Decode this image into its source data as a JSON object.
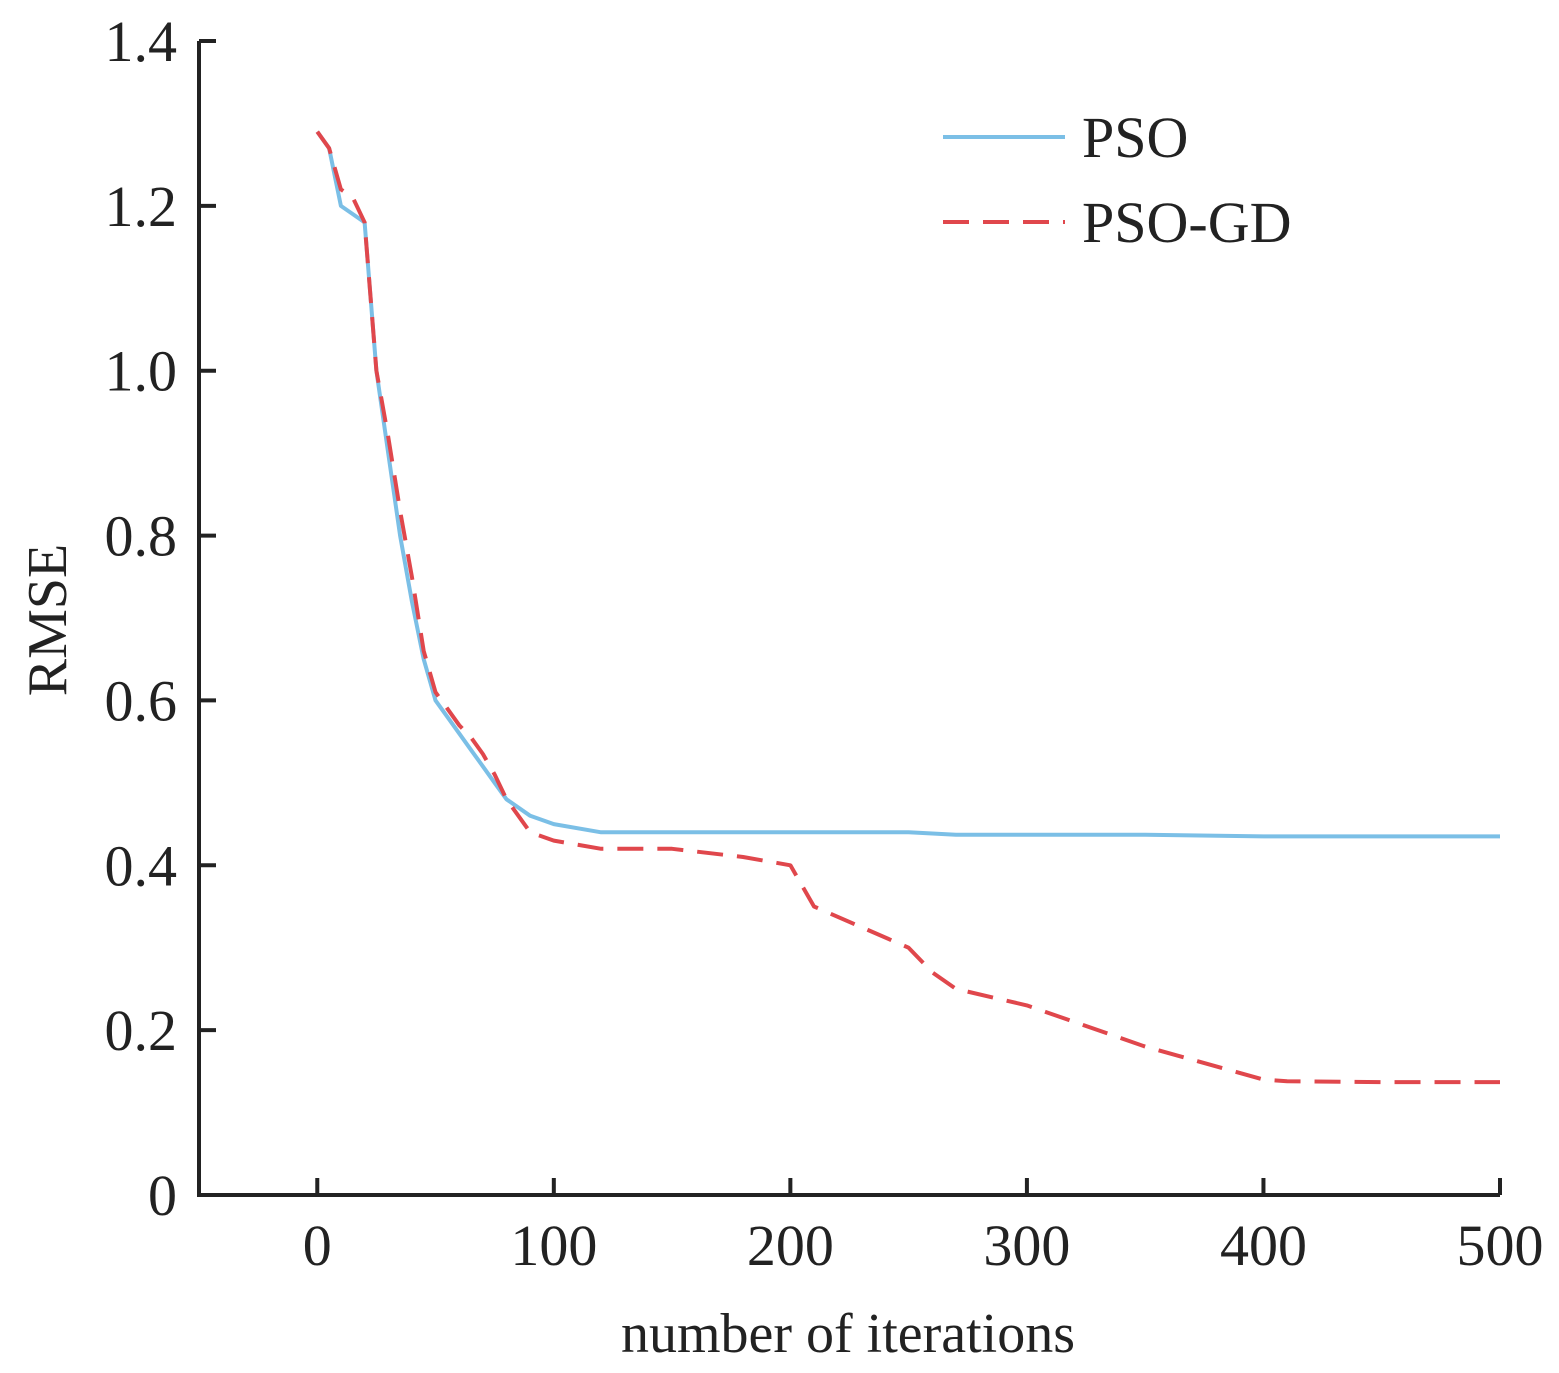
{
  "chart_data": {
    "type": "line",
    "title": "",
    "xlabel": "number of iterations",
    "ylabel": "RMSE",
    "xlim": [
      -50,
      500
    ],
    "ylim": [
      0,
      1.4
    ],
    "xticks": [
      0,
      100,
      200,
      300,
      400,
      500
    ],
    "xtick_labels": [
      "0",
      "100",
      "200",
      "300",
      "400",
      "500"
    ],
    "yticks": [
      0,
      0.2,
      0.4,
      0.6,
      0.8,
      1.0,
      1.2,
      1.4
    ],
    "ytick_labels": [
      "0",
      "0.2",
      "0.4",
      "0.6",
      "0.8",
      "1.0",
      "1.2",
      "1.4"
    ],
    "grid": false,
    "legend_position": "top-right",
    "series": [
      {
        "name": "PSO",
        "color": "#7bbfe6",
        "line_style": "solid",
        "x": [
          0,
          5,
          10,
          15,
          20,
          25,
          30,
          35,
          40,
          45,
          50,
          55,
          60,
          65,
          70,
          75,
          80,
          90,
          100,
          120,
          150,
          200,
          250,
          270,
          300,
          350,
          400,
          450,
          500
        ],
        "y": [
          1.29,
          1.27,
          1.2,
          1.19,
          1.18,
          1.0,
          0.9,
          0.8,
          0.72,
          0.65,
          0.6,
          0.58,
          0.56,
          0.54,
          0.52,
          0.5,
          0.48,
          0.46,
          0.45,
          0.44,
          0.44,
          0.44,
          0.44,
          0.437,
          0.437,
          0.437,
          0.435,
          0.435,
          0.435
        ]
      },
      {
        "name": "PSO-GD",
        "color": "#e0474c",
        "line_style": "dashed",
        "x": [
          0,
          5,
          10,
          15,
          20,
          25,
          30,
          35,
          40,
          45,
          50,
          55,
          60,
          65,
          70,
          75,
          80,
          90,
          100,
          120,
          150,
          180,
          200,
          210,
          250,
          260,
          270,
          300,
          350,
          400,
          410,
          450,
          500
        ],
        "y": [
          1.29,
          1.27,
          1.22,
          1.21,
          1.18,
          1.0,
          0.92,
          0.83,
          0.75,
          0.66,
          0.61,
          0.59,
          0.57,
          0.555,
          0.535,
          0.51,
          0.48,
          0.44,
          0.43,
          0.42,
          0.42,
          0.41,
          0.4,
          0.35,
          0.3,
          0.27,
          0.25,
          0.23,
          0.18,
          0.14,
          0.138,
          0.137,
          0.137
        ]
      }
    ]
  }
}
